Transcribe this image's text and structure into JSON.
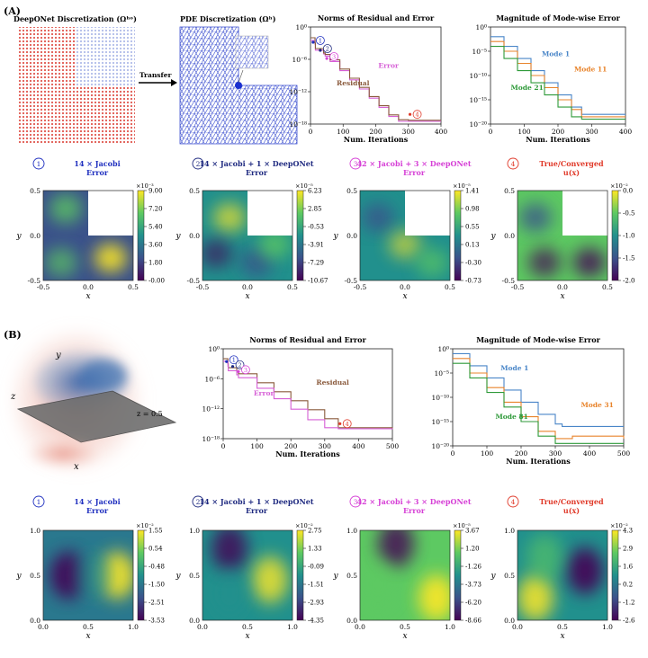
{
  "panel_a": {
    "label": "(A)",
    "mesh1_title": "DeepONet Discretization (Ωʰᵒ)",
    "mesh2_title": "PDE Discretization (Ωʰ)",
    "transfer_label": "Transfer",
    "maps": [
      {
        "marker": "1",
        "title_colored": "14 × Jacobi",
        "subtitle": "Error",
        "color": "#1f2fbf",
        "exponent": "×10⁻³",
        "ticks": [
          "9.00",
          "7.20",
          "5.40",
          "3.60",
          "1.80",
          "-0.00"
        ]
      },
      {
        "marker": "2",
        "title_colored": "14 × Jacobi + 1 × DeepONet",
        "subtitle": "Error",
        "color": "#1f2a80",
        "exponent": "×10⁻⁵",
        "ticks": [
          "6.23",
          "2.85",
          "-0.53",
          "-3.91",
          "-7.29",
          "-10.67"
        ]
      },
      {
        "marker": "3",
        "title_colored": "42 × Jacobi + 3 × DeepONet",
        "subtitle": "Error",
        "color": "#d640d6",
        "exponent": "×10⁻⁵",
        "ticks": [
          "1.41",
          "0.98",
          "0.55",
          "0.13",
          "-0.30",
          "-0.73"
        ]
      },
      {
        "marker": "4",
        "title_colored": "True/Converged",
        "subtitle": "u(x)",
        "color": "#e03a2a",
        "exponent": "×10⁻²",
        "ticks": [
          "0.0",
          "-0.5",
          "-1.0",
          "-1.5",
          "-2.0"
        ]
      }
    ],
    "map_xticks": [
      "-0.5",
      "0.0",
      "0.5"
    ],
    "map_yticks": [
      "0.5",
      "0.0",
      "-0.5"
    ]
  },
  "panel_b": {
    "label": "(B)",
    "cube_labels": {
      "y": "y",
      "z": "z",
      "x": "x",
      "plane": "z = 0.5"
    },
    "maps": [
      {
        "marker": "1",
        "title_colored": "14 × Jacobi",
        "subtitle": "Error",
        "color": "#1f2fbf",
        "exponent": "×10⁻²",
        "ticks": [
          "1.55",
          "0.54",
          "-0.48",
          "-1.50",
          "-2.51",
          "-3.53"
        ]
      },
      {
        "marker": "2",
        "title_colored": "14 × Jacobi + 1 × DeepONet",
        "subtitle": "Error",
        "color": "#1f2a80",
        "exponent": "×10⁻²",
        "ticks": [
          "2.75",
          "1.33",
          "-0.09",
          "-1.51",
          "-2.93",
          "-4.35"
        ]
      },
      {
        "marker": "3",
        "title_colored": "42 × Jacobi + 3 × DeepONet",
        "subtitle": "Error",
        "color": "#d640d6",
        "exponent": "×10⁻⁵",
        "ticks": [
          "3.67",
          "1.20",
          "-1.26",
          "-3.73",
          "-6.20",
          "-8.66"
        ]
      },
      {
        "marker": "4",
        "title_colored": "True/Converged",
        "subtitle": "u(x)",
        "color": "#e03a2a",
        "exponent": "×10⁻²",
        "ticks": [
          "4.3",
          "2.9",
          "1.6",
          "0.2",
          "-1.2",
          "-2.6"
        ]
      }
    ],
    "map_xticks": [
      "0.0",
      "0.5",
      "1.0"
    ],
    "map_yticks": [
      "1.0",
      "0.5",
      "0.0"
    ]
  },
  "axis_labels": {
    "x": "x",
    "y": "y"
  },
  "chart_data": [
    {
      "id": "a_norms",
      "type": "line",
      "title": "Norms of Residual and Error",
      "xlabel": "Num. Iterations",
      "ylabel": "",
      "xlim": [
        0,
        400
      ],
      "ylim": [
        -18,
        0
      ],
      "yscale": "log10",
      "xticks": [
        "0",
        "100",
        "200",
        "300",
        "400"
      ],
      "yticks": [
        "10⁰",
        "10⁻⁶",
        "10⁻¹²",
        "10⁻¹⁸"
      ],
      "series": [
        {
          "name": "Error",
          "color": "#d65fd6",
          "x": [
            0,
            14,
            15,
            40,
            45,
            60,
            90,
            120,
            150,
            180,
            210,
            240,
            270,
            300,
            310,
            340,
            400
          ],
          "y": [
            -2.5,
            -3.2,
            -4.3,
            -5,
            -5.4,
            -6.4,
            -8.1,
            -9.8,
            -11.5,
            -13.2,
            -14.9,
            -16.6,
            -17.5,
            -17.5,
            -17.5,
            -17.5,
            -17.5
          ]
        },
        {
          "name": "Residual",
          "color": "#8a5a3c",
          "x": [
            0,
            14,
            15,
            40,
            45,
            60,
            90,
            120,
            150,
            180,
            210,
            240,
            270,
            300,
            310,
            340,
            400
          ],
          "y": [
            -2,
            -3,
            -4,
            -4.8,
            -5.1,
            -6.1,
            -7.8,
            -9.5,
            -11.2,
            -12.9,
            -14.6,
            -16.3,
            -17.2,
            -17.3,
            -17.3,
            -17.3,
            -17.3
          ]
        }
      ],
      "annotations": [
        "1",
        "2",
        "3",
        "4"
      ]
    },
    {
      "id": "a_modes",
      "type": "line",
      "title": "Magnitude of Mode-wise Error",
      "xlabel": "Num. Iterations",
      "ylabel": "",
      "xlim": [
        0,
        400
      ],
      "ylim": [
        -20,
        0
      ],
      "yscale": "log10",
      "xticks": [
        "0",
        "100",
        "200",
        "300",
        "400"
      ],
      "yticks": [
        "10⁰",
        "10⁻⁵",
        "10⁻¹⁰",
        "10⁻¹⁵",
        "10⁻²⁰"
      ],
      "series": [
        {
          "name": "Mode 1",
          "color": "#4a86c8",
          "x": [
            0,
            40,
            80,
            120,
            160,
            200,
            240,
            270,
            300,
            400
          ],
          "y": [
            -2,
            -4,
            -6.5,
            -9,
            -11.5,
            -14,
            -16.5,
            -18,
            -18,
            -18
          ]
        },
        {
          "name": "Mode 11",
          "color": "#e8842c",
          "x": [
            0,
            40,
            80,
            120,
            160,
            200,
            240,
            270,
            300,
            400
          ],
          "y": [
            -3,
            -5,
            -7.5,
            -10,
            -12.5,
            -15,
            -17,
            -18.5,
            -18.5,
            -18.5
          ]
        },
        {
          "name": "Mode 21",
          "color": "#2f9a3a",
          "x": [
            0,
            40,
            80,
            120,
            160,
            200,
            240,
            270,
            300,
            400
          ],
          "y": [
            -4,
            -6.5,
            -9,
            -11.5,
            -14,
            -16.5,
            -18.5,
            -19,
            -19,
            -19
          ]
        }
      ]
    },
    {
      "id": "b_norms",
      "type": "line",
      "title": "Norms of Residual and Error",
      "xlabel": "Num. Iterations",
      "ylabel": "",
      "xlim": [
        0,
        500
      ],
      "ylim": [
        -18,
        0
      ],
      "yscale": "log10",
      "xticks": [
        "0",
        "100",
        "200",
        "300",
        "400",
        "500"
      ],
      "yticks": [
        "10⁰",
        "10⁻⁶",
        "10⁻¹²",
        "10⁻¹⁸"
      ],
      "series": [
        {
          "name": "Residual",
          "color": "#8a5a3c",
          "x": [
            0,
            14,
            15,
            40,
            45,
            100,
            150,
            200,
            250,
            300,
            340,
            400,
            500
          ],
          "y": [
            -2,
            -3,
            -3.8,
            -4.5,
            -5,
            -6.8,
            -8.6,
            -10.4,
            -12.2,
            -14,
            -15.8,
            -15.8,
            -15.7
          ]
        },
        {
          "name": "Error",
          "color": "#d65fd6",
          "x": [
            0,
            14,
            15,
            40,
            45,
            100,
            150,
            200,
            250,
            300,
            340,
            400,
            500
          ],
          "y": [
            -2.5,
            -3.5,
            -4.4,
            -5.2,
            -5.8,
            -7.9,
            -10,
            -12.1,
            -14.2,
            -15.8,
            -16,
            -16,
            -15.9
          ]
        }
      ],
      "annotations": [
        "1",
        "2",
        "3",
        "4"
      ]
    },
    {
      "id": "b_modes",
      "type": "line",
      "title": "Magnitude of Mode-wise Error",
      "xlabel": "Num. Iterations",
      "ylabel": "",
      "xlim": [
        0,
        500
      ],
      "ylim": [
        -20,
        0
      ],
      "yscale": "log10",
      "xticks": [
        "0",
        "100",
        "200",
        "300",
        "400",
        "500"
      ],
      "yticks": [
        "10⁰",
        "10⁻⁵",
        "10⁻¹⁰",
        "10⁻¹⁵",
        "10⁻²⁰"
      ],
      "series": [
        {
          "name": "Mode 1",
          "color": "#4a86c8",
          "x": [
            0,
            50,
            100,
            150,
            200,
            250,
            300,
            320,
            500
          ],
          "y": [
            -1,
            -3.5,
            -6,
            -8.5,
            -11,
            -13.5,
            -15.5,
            -16,
            -16
          ]
        },
        {
          "name": "Mode 31",
          "color": "#e8842c",
          "x": [
            0,
            50,
            100,
            150,
            200,
            250,
            300,
            350,
            500
          ],
          "y": [
            -2,
            -5,
            -8,
            -11,
            -14,
            -17,
            -18.5,
            -18,
            -18.5
          ]
        },
        {
          "name": "Mode 81",
          "color": "#2f9a3a",
          "x": [
            0,
            50,
            100,
            150,
            200,
            250,
            300,
            350,
            500
          ],
          "y": [
            -3,
            -6,
            -9,
            -12,
            -15,
            -18,
            -19.5,
            -19.5,
            -19.5
          ]
        }
      ]
    }
  ]
}
